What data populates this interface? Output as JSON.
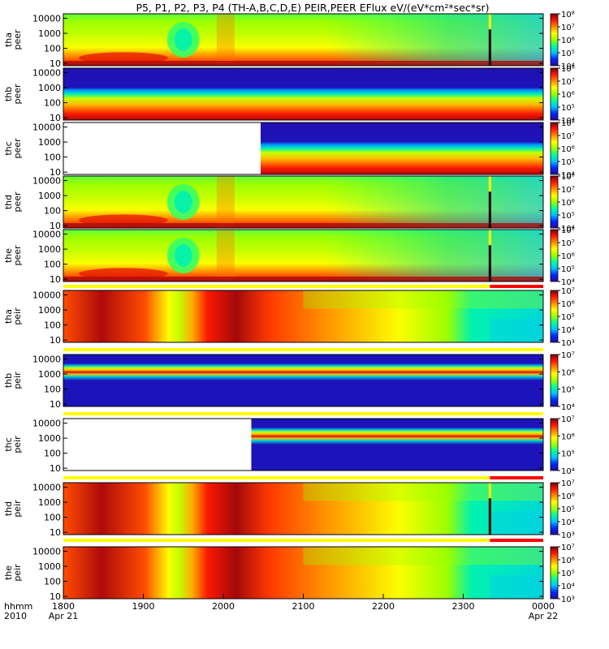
{
  "chart_data": {
    "type": "heatmap",
    "title": "P5, P1, P2, P3, P4 (TH-A,B,C,D,E) PEIR,PEER EFlux eV/(eV*cm²*sec*sr)",
    "xlabel": "hhmm\n2010",
    "x_axis": {
      "units": "UT time (hhmm)",
      "range": [
        "1800",
        "0000"
      ],
      "ticks": [
        "1800",
        "1900",
        "2000",
        "2100",
        "2200",
        "2300",
        "0000"
      ],
      "date_labels": [
        {
          "at": "1800",
          "text": "Apr 21"
        },
        {
          "at": "0000",
          "text": "Apr 22"
        }
      ]
    },
    "y_axis": {
      "scale": "log",
      "units": "eV",
      "range": [
        7,
        20000
      ],
      "ticks": [
        "10",
        "100",
        "1000",
        "10000"
      ]
    },
    "colormap": [
      "#2a0a9a",
      "#0026ff",
      "#00c0ff",
      "#00ff9c",
      "#9cff00",
      "#ffff00",
      "#ff8c00",
      "#ff1a00",
      "#7a0010"
    ],
    "panels": [
      {
        "probe": "tha",
        "species": "peer",
        "label_lines": [
          "tha",
          "peer"
        ],
        "colorbar": {
          "range": [
            10000,
            100000000
          ],
          "ticks": [
            "10⁴",
            "10⁵",
            "10⁶",
            "10⁷",
            "10⁸"
          ]
        },
        "style": "electron-smooth",
        "has_gap_marker": true
      },
      {
        "probe": "thb",
        "species": "peer",
        "label_lines": [
          "thb",
          "peer"
        ],
        "colorbar": {
          "range": [
            10000,
            100000000
          ],
          "ticks": [
            "10⁴",
            "10⁵",
            "10⁶",
            "10⁷",
            "10⁸"
          ]
        },
        "style": "electron-band"
      },
      {
        "probe": "thc",
        "species": "peer",
        "label_lines": [
          "thc",
          "peer"
        ],
        "colorbar": {
          "range": [
            10000,
            100000000
          ],
          "ticks": [
            "10⁴",
            "10⁵",
            "10⁶",
            "10⁷",
            "10⁸"
          ]
        },
        "style": "electron-band-late",
        "no_data_until": "2028"
      },
      {
        "probe": "thd",
        "species": "peer",
        "label_lines": [
          "thd",
          "peer"
        ],
        "colorbar": {
          "range": [
            10000,
            100000000
          ],
          "ticks": [
            "10⁴",
            "10⁵",
            "10⁶",
            "10⁷",
            "10⁸"
          ]
        },
        "style": "electron-smooth",
        "has_gap_marker": true
      },
      {
        "probe": "the",
        "species": "peer",
        "label_lines": [
          "the",
          "peer"
        ],
        "colorbar": {
          "range": [
            10000,
            100000000
          ],
          "ticks": [
            "10⁴",
            "10⁵",
            "10⁶",
            "10⁷",
            "10⁸"
          ]
        },
        "style": "electron-smooth",
        "has_gap_marker": true
      },
      {
        "probe": "tha",
        "species": "peir",
        "label_lines": [
          "tha",
          "peir"
        ],
        "colorbar": {
          "range": [
            1000,
            10000000
          ],
          "ticks": [
            "10³",
            "10⁴",
            "10⁵",
            "10⁶",
            "10⁷"
          ]
        },
        "style": "ion-smooth"
      },
      {
        "probe": "thb",
        "species": "peir",
        "label_lines": [
          "thb",
          "peir"
        ],
        "colorbar": {
          "range": [
            10000,
            10000000
          ],
          "ticks": [
            "10⁴",
            "10⁵",
            "10⁶",
            "10⁷"
          ]
        },
        "style": "ion-band"
      },
      {
        "probe": "thc",
        "species": "peir",
        "label_lines": [
          "thc",
          "peir"
        ],
        "colorbar": {
          "range": [
            10000,
            10000000
          ],
          "ticks": [
            "10⁴",
            "10⁵",
            "10⁶",
            "10⁷"
          ]
        },
        "style": "ion-band-late",
        "no_data_until": "2021"
      },
      {
        "probe": "thd",
        "species": "peir",
        "label_lines": [
          "thd",
          "peir"
        ],
        "colorbar": {
          "range": [
            1000,
            10000000
          ],
          "ticks": [
            "10³",
            "10⁴",
            "10⁵",
            "10⁶",
            "10⁷"
          ]
        },
        "style": "ion-smooth",
        "has_gap_marker": true
      },
      {
        "probe": "the",
        "species": "peir",
        "label_lines": [
          "the",
          "peir"
        ],
        "colorbar": {
          "range": [
            1000,
            10000000
          ],
          "ticks": [
            "10³",
            "10⁴",
            "10⁵",
            "10⁶",
            "10⁷"
          ]
        },
        "style": "ion-smooth"
      }
    ],
    "gap_marker_time": "2280",
    "mode_bars": [
      {
        "before_panel": 5,
        "segments": [
          {
            "from": "1800",
            "to": "2280",
            "color": "#ffff00"
          },
          {
            "from": "2280",
            "to": "0000",
            "color": "#ff0000"
          }
        ]
      },
      {
        "before_panel": 6,
        "segments": [
          {
            "from": "1800",
            "to": "0000",
            "color": "#ffff00"
          }
        ]
      },
      {
        "before_panel": 7,
        "segments": [
          {
            "from": "1800",
            "to": "0000",
            "color": "#ffff00"
          }
        ]
      },
      {
        "before_panel": 8,
        "segments": [
          {
            "from": "1800",
            "to": "2280",
            "color": "#ffff00"
          },
          {
            "from": "2280",
            "to": "0000",
            "color": "#ff0000"
          }
        ]
      },
      {
        "before_panel": 9,
        "segments": [
          {
            "from": "1800",
            "to": "2280",
            "color": "#ffff00"
          },
          {
            "from": "2280",
            "to": "0000",
            "color": "#ff0000"
          }
        ]
      }
    ]
  }
}
